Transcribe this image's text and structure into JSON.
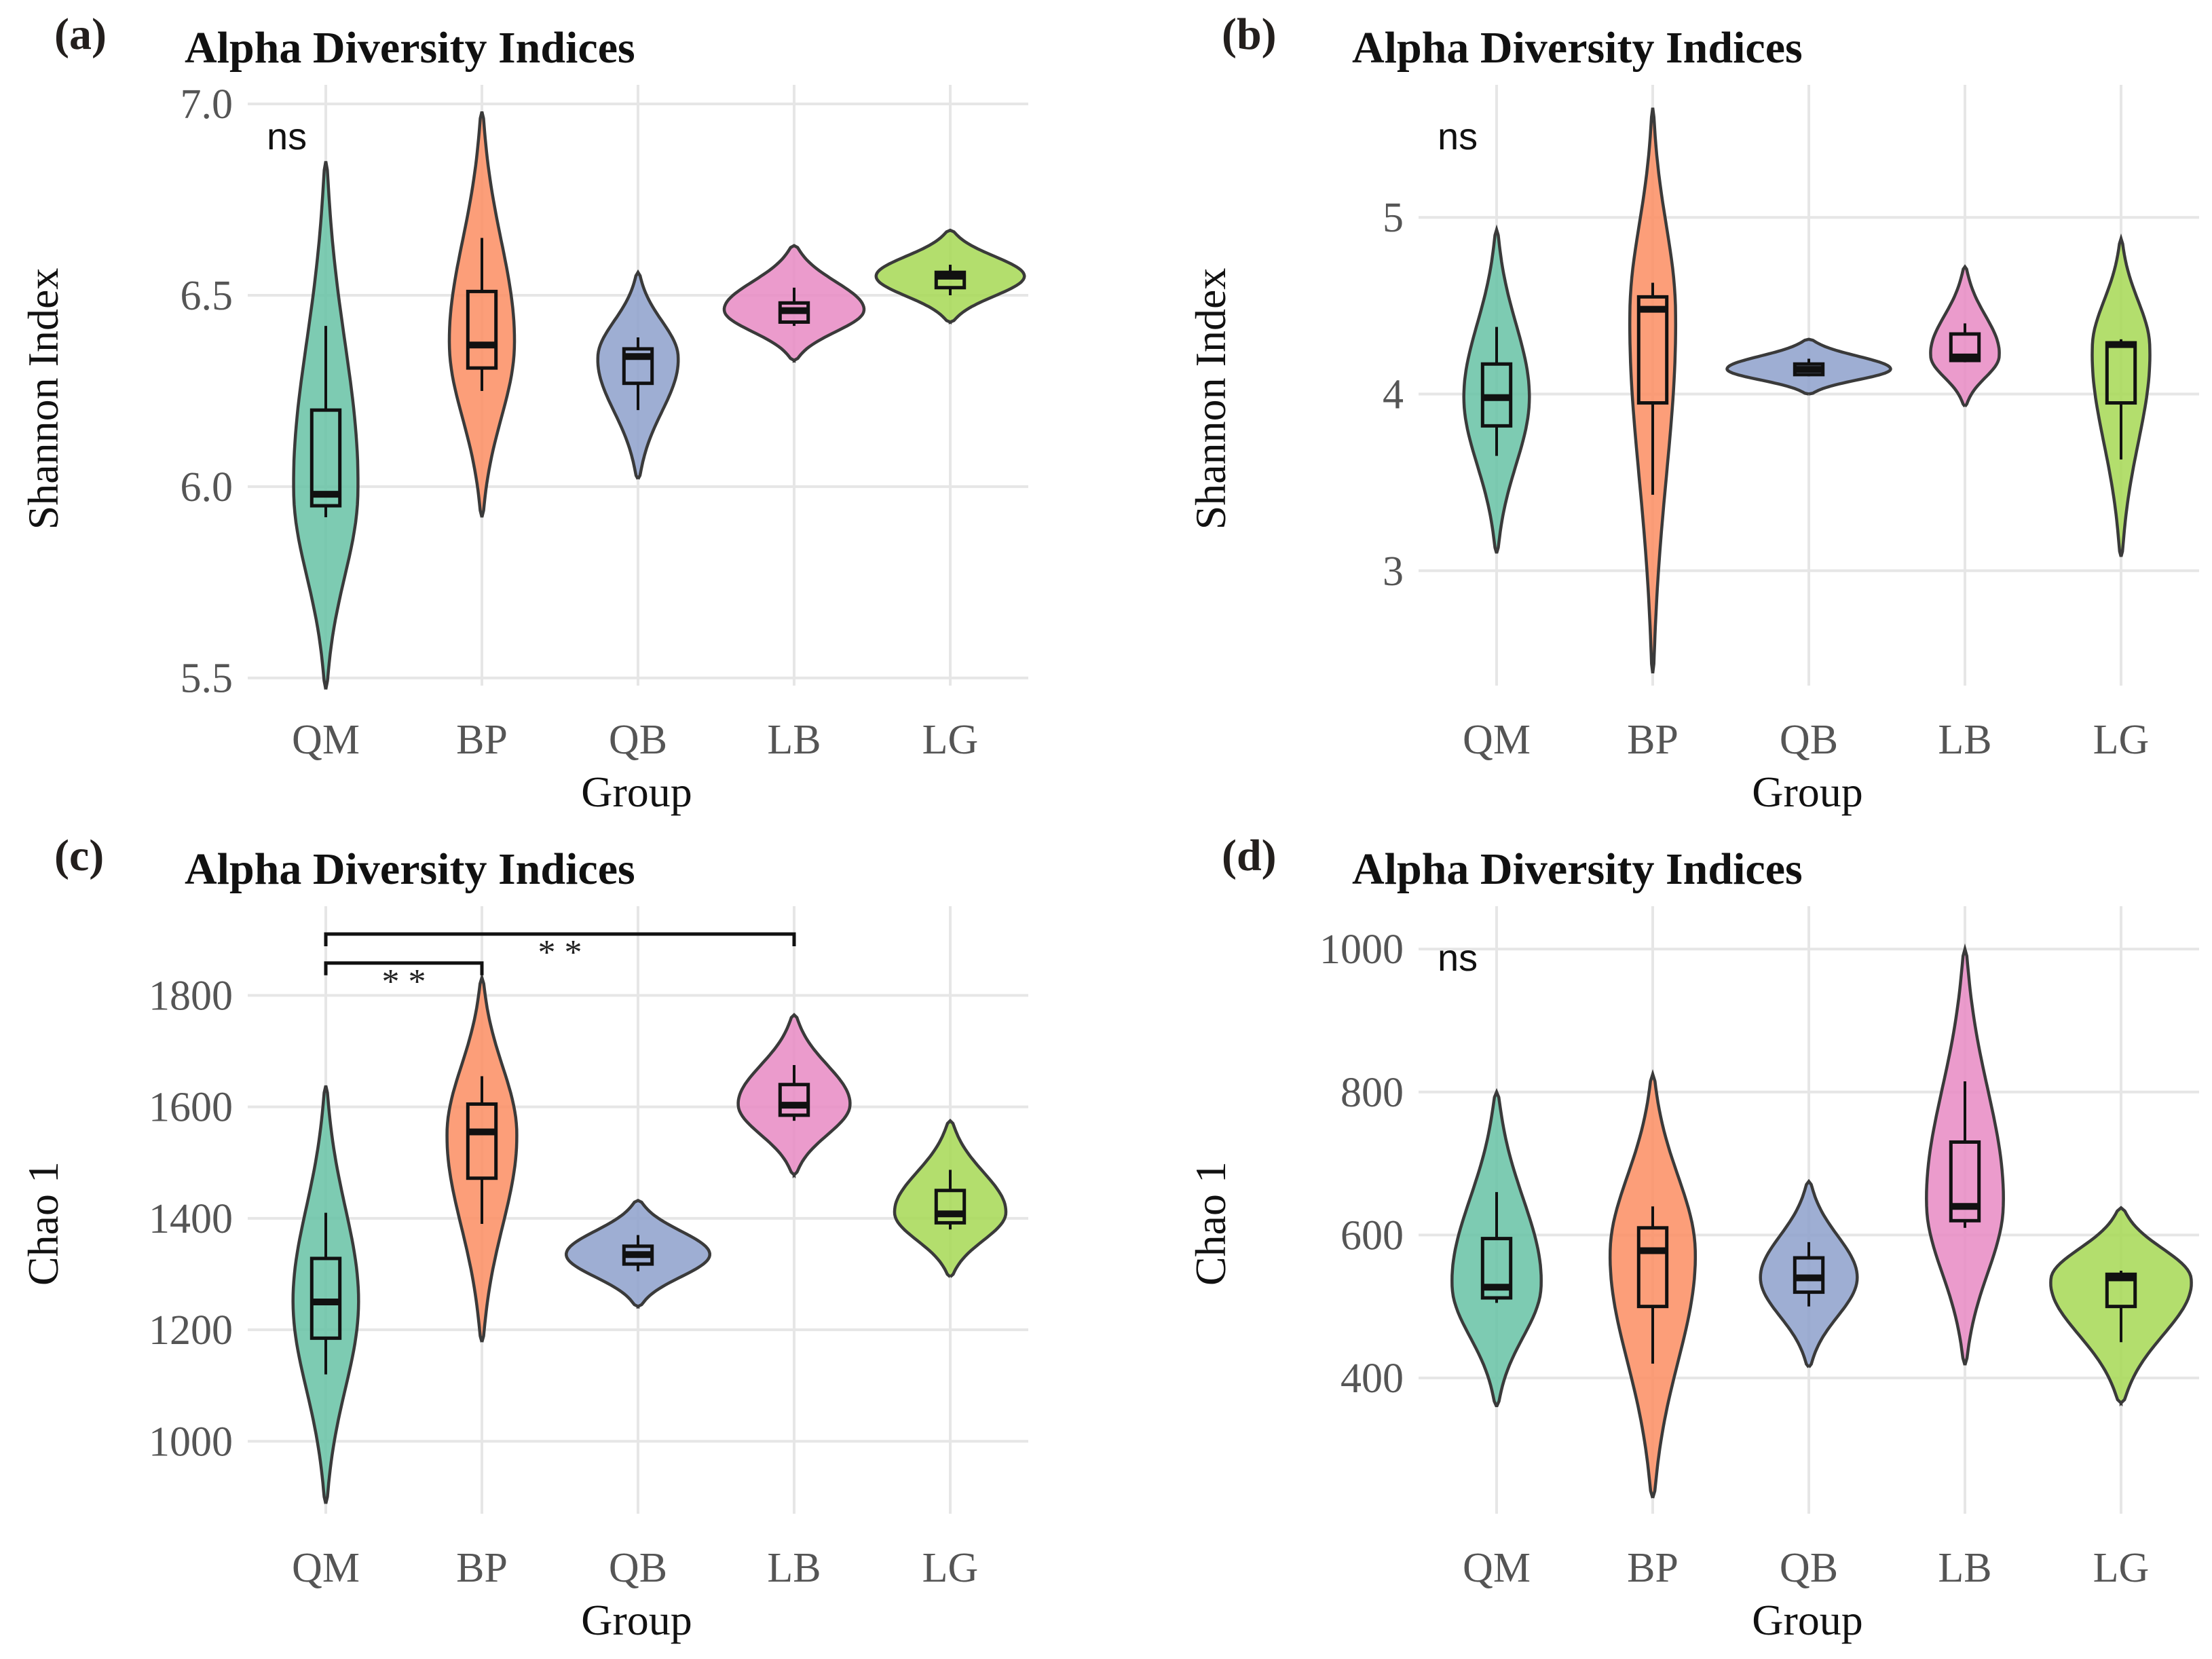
{
  "figure": {
    "group_axis_title": "Group",
    "colors": {
      "QM": "#66c2a5",
      "BP": "#fc8d62",
      "QB": "#8da0cb",
      "LB": "#e78ac3",
      "LG": "#a6d854"
    }
  },
  "chart_data": [
    {
      "id": "a",
      "panel_label": "(a)",
      "type": "violin",
      "title": "Alpha Diversity Indices",
      "xlabel": "Group",
      "ylabel": "Shannon Index",
      "categories": [
        "QM",
        "BP",
        "QB",
        "LB",
        "LG"
      ],
      "ylim": [
        5.48,
        7.05
      ],
      "yticks": [
        5.5,
        6.0,
        6.5,
        7.0
      ],
      "ytick_labels": [
        "5.5",
        "6.0",
        "6.5",
        "7.0"
      ],
      "annotation": "ns",
      "groups": [
        {
          "name": "QM",
          "violin_min": 5.47,
          "violin_max": 6.85,
          "violin_width": 0.42,
          "box": {
            "whisker_low": 5.92,
            "q1": 5.95,
            "median": 5.98,
            "q3": 6.2,
            "whisker_high": 6.42
          }
        },
        {
          "name": "BP",
          "violin_min": 5.92,
          "violin_max": 6.98,
          "violin_width": 0.42,
          "box": {
            "whisker_low": 6.25,
            "q1": 6.31,
            "median": 6.37,
            "q3": 6.51,
            "whisker_high": 6.65
          }
        },
        {
          "name": "QB",
          "violin_min": 6.02,
          "violin_max": 6.56,
          "violin_width": 0.52,
          "box": {
            "whisker_low": 6.2,
            "q1": 6.27,
            "median": 6.34,
            "q3": 6.36,
            "whisker_high": 6.39
          }
        },
        {
          "name": "LB",
          "violin_min": 6.33,
          "violin_max": 6.63,
          "violin_width": 0.9,
          "box": {
            "whisker_low": 6.42,
            "q1": 6.43,
            "median": 6.46,
            "q3": 6.48,
            "whisker_high": 6.52
          }
        },
        {
          "name": "LG",
          "violin_min": 6.43,
          "violin_max": 6.67,
          "violin_width": 0.95,
          "box": {
            "whisker_low": 6.5,
            "q1": 6.52,
            "median": 6.55,
            "q3": 6.56,
            "whisker_high": 6.58
          }
        }
      ]
    },
    {
      "id": "b",
      "panel_label": "(b)",
      "type": "violin",
      "title": "Alpha Diversity Indices",
      "xlabel": "Group",
      "ylabel": "Shannon Index",
      "categories": [
        "QM",
        "BP",
        "QB",
        "LB",
        "LG"
      ],
      "ylim": [
        2.35,
        5.75
      ],
      "yticks": [
        3,
        4,
        5
      ],
      "ytick_labels": [
        "3",
        "4",
        "5"
      ],
      "annotation": "ns",
      "groups": [
        {
          "name": "QM",
          "violin_min": 3.1,
          "violin_max": 4.93,
          "violin_width": 0.42,
          "box": {
            "whisker_low": 3.65,
            "q1": 3.82,
            "median": 3.98,
            "q3": 4.17,
            "whisker_high": 4.38
          }
        },
        {
          "name": "BP",
          "violin_min": 2.42,
          "violin_max": 5.62,
          "violin_width": 0.3,
          "box": {
            "whisker_low": 3.43,
            "q1": 3.95,
            "median": 4.48,
            "q3": 4.55,
            "whisker_high": 4.63
          }
        },
        {
          "name": "QB",
          "violin_min": 4.0,
          "violin_max": 4.31,
          "violin_width": 1.05,
          "box": {
            "whisker_low": 4.1,
            "q1": 4.11,
            "median": 4.14,
            "q3": 4.17,
            "whisker_high": 4.2
          }
        },
        {
          "name": "LB",
          "violin_min": 3.93,
          "violin_max": 4.72,
          "violin_width": 0.45,
          "box": {
            "whisker_low": 4.18,
            "q1": 4.19,
            "median": 4.21,
            "q3": 4.34,
            "whisker_high": 4.4
          }
        },
        {
          "name": "LG",
          "violin_min": 3.08,
          "violin_max": 4.88,
          "violin_width": 0.38,
          "box": {
            "whisker_low": 3.63,
            "q1": 3.95,
            "median": 4.28,
            "q3": 4.29,
            "whisker_high": 4.31
          }
        }
      ]
    },
    {
      "id": "c",
      "panel_label": "(c)",
      "type": "violin",
      "title": "Alpha Diversity Indices",
      "xlabel": "Group",
      "ylabel": "Chao 1",
      "categories": [
        "QM",
        "BP",
        "QB",
        "LB",
        "LG"
      ],
      "ylim": [
        870,
        1960
      ],
      "yticks": [
        1000,
        1200,
        1400,
        1600,
        1800
      ],
      "ytick_labels": [
        "1000",
        "1200",
        "1400",
        "1600",
        "1800"
      ],
      "annotation": "",
      "significance": [
        {
          "from": "QM",
          "to": "BP",
          "label": "* *",
          "y": 1858
        },
        {
          "from": "QM",
          "to": "LB",
          "label": "* *",
          "y": 1910
        }
      ],
      "groups": [
        {
          "name": "QM",
          "violin_min": 888,
          "violin_max": 1638,
          "violin_width": 0.42,
          "box": {
            "whisker_low": 1120,
            "q1": 1185,
            "median": 1250,
            "q3": 1328,
            "whisker_high": 1410
          }
        },
        {
          "name": "BP",
          "violin_min": 1178,
          "violin_max": 1832,
          "violin_width": 0.45,
          "box": {
            "whisker_low": 1390,
            "q1": 1472,
            "median": 1555,
            "q3": 1605,
            "whisker_high": 1655
          }
        },
        {
          "name": "QB",
          "violin_min": 1242,
          "violin_max": 1432,
          "violin_width": 0.92,
          "box": {
            "whisker_low": 1305,
            "q1": 1318,
            "median": 1335,
            "q3": 1350,
            "whisker_high": 1370
          }
        },
        {
          "name": "LB",
          "violin_min": 1478,
          "violin_max": 1765,
          "violin_width": 0.72,
          "box": {
            "whisker_low": 1575,
            "q1": 1585,
            "median": 1603,
            "q3": 1640,
            "whisker_high": 1675
          }
        },
        {
          "name": "LG",
          "violin_min": 1295,
          "violin_max": 1575,
          "violin_width": 0.72,
          "box": {
            "whisker_low": 1380,
            "q1": 1392,
            "median": 1408,
            "q3": 1450,
            "whisker_high": 1487
          }
        }
      ]
    },
    {
      "id": "d",
      "panel_label": "(d)",
      "type": "violin",
      "title": "Alpha Diversity Indices",
      "xlabel": "Group",
      "ylabel": "Chao 1",
      "categories": [
        "QM",
        "BP",
        "QB",
        "LB",
        "LG"
      ],
      "ylim": [
        210,
        1060
      ],
      "yticks": [
        400,
        600,
        800,
        1000
      ],
      "ytick_labels": [
        "400",
        "600",
        "800",
        "1000"
      ],
      "annotation": "ns",
      "groups": [
        {
          "name": "QM",
          "violin_min": 360,
          "violin_max": 800,
          "violin_width": 0.58,
          "box": {
            "whisker_low": 505,
            "q1": 512,
            "median": 527,
            "q3": 595,
            "whisker_high": 660
          }
        },
        {
          "name": "BP",
          "violin_min": 232,
          "violin_max": 825,
          "violin_width": 0.55,
          "box": {
            "whisker_low": 420,
            "q1": 500,
            "median": 578,
            "q3": 610,
            "whisker_high": 640
          }
        },
        {
          "name": "QB",
          "violin_min": 415,
          "violin_max": 675,
          "violin_width": 0.62,
          "box": {
            "whisker_low": 500,
            "q1": 520,
            "median": 540,
            "q3": 568,
            "whisker_high": 590
          }
        },
        {
          "name": "LB",
          "violin_min": 418,
          "violin_max": 1000,
          "violin_width": 0.5,
          "box": {
            "whisker_low": 610,
            "q1": 620,
            "median": 640,
            "q3": 730,
            "whisker_high": 815
          }
        },
        {
          "name": "LG",
          "violin_min": 365,
          "violin_max": 638,
          "violin_width": 0.92,
          "box": {
            "whisker_low": 450,
            "q1": 500,
            "median": 540,
            "q3": 545,
            "whisker_high": 550
          }
        }
      ]
    }
  ]
}
